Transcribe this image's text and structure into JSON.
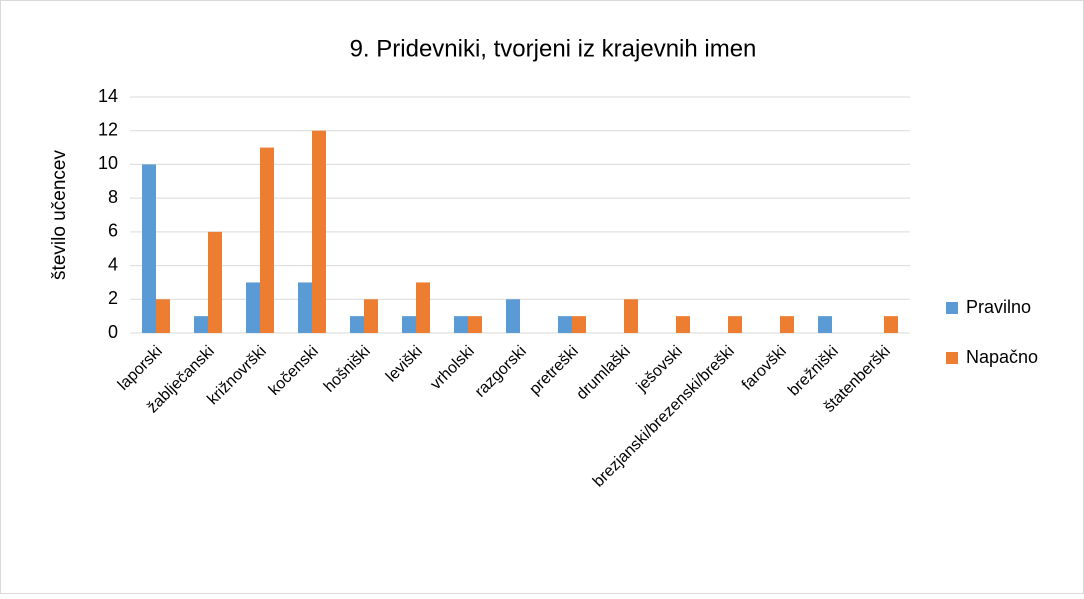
{
  "chart_data": {
    "type": "bar",
    "title": "9. Pridevniki, tvorjeni iz krajevnih imen",
    "y_label": "število učencev",
    "categories": [
      "laporski",
      "žablječanski",
      "križnovrški",
      "kočenski",
      "hošniški",
      "leviški",
      "vrholski",
      "razgorski",
      "pretreški",
      "drumlaški",
      "ješovski",
      "brezjanski/brezenski/breški",
      "farovški",
      "brežniški",
      "štatenberški"
    ],
    "series": [
      {
        "name": "Pravilno",
        "color": "#5b9bd5",
        "values": [
          10,
          1,
          3,
          3,
          1,
          1,
          1,
          2,
          1,
          0,
          0,
          0,
          0,
          1,
          0
        ]
      },
      {
        "name": "Napačno",
        "color": "#ed7d31",
        "values": [
          2,
          6,
          11,
          12,
          2,
          3,
          1,
          0,
          1,
          2,
          1,
          1,
          1,
          0,
          1
        ]
      }
    ],
    "ylim": [
      0,
      14
    ],
    "yticks": [
      0,
      2,
      4,
      6,
      8,
      10,
      12,
      14
    ],
    "grid": true,
    "legend": "right"
  }
}
